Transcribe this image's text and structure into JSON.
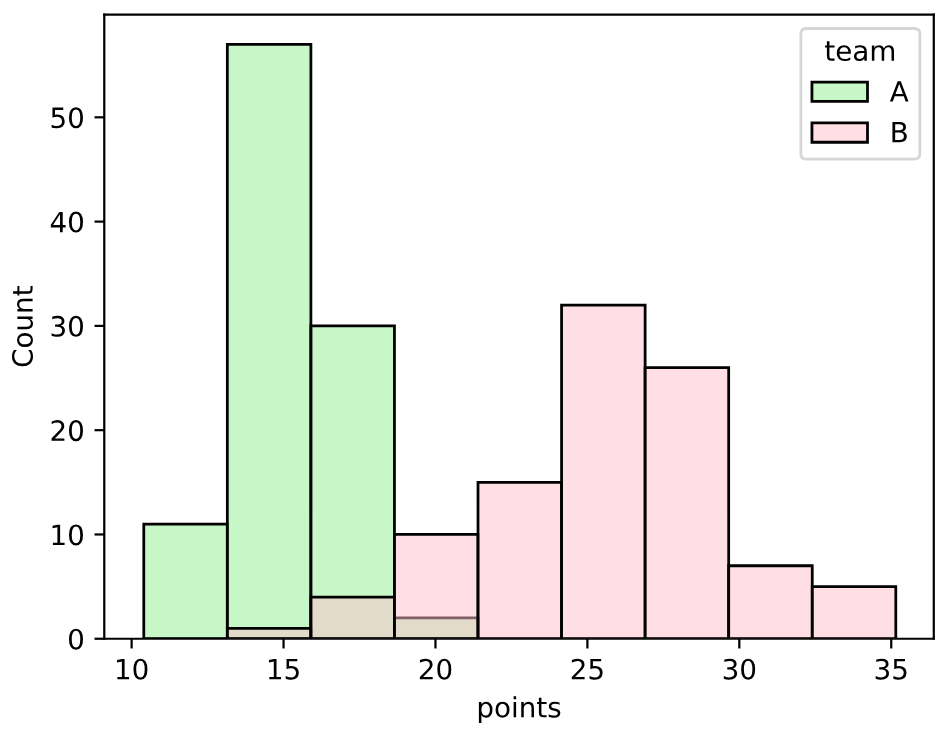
{
  "chart_data": {
    "type": "histogram",
    "xlabel": "points",
    "ylabel": "Count",
    "legend_title": "team",
    "legend": "top right",
    "bins": [
      10.4,
      13.15,
      15.9,
      18.65,
      21.4,
      24.15,
      26.9,
      29.65,
      32.4,
      35.15
    ],
    "series": [
      {
        "name": "A",
        "color": "#90ee90",
        "values": [
          11,
          57,
          30,
          2,
          0,
          0,
          0,
          0,
          0
        ]
      },
      {
        "name": "B",
        "color": "#ffc0cb",
        "values": [
          0,
          1,
          4,
          10,
          15,
          32,
          26,
          7,
          5
        ]
      }
    ],
    "xlim": [
      9.1,
      36.4
    ],
    "ylim": [
      0,
      59.85
    ],
    "xticks": [
      10,
      15,
      20,
      25,
      30,
      35
    ],
    "yticks": [
      0,
      10,
      20,
      30,
      40,
      50
    ],
    "grid": false
  }
}
